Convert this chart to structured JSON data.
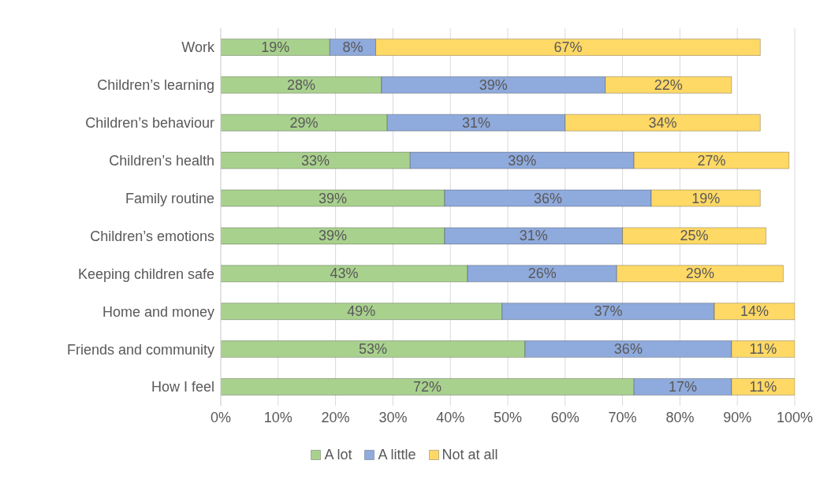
{
  "chart_data": {
    "type": "bar",
    "orientation": "horizontal",
    "stacked": true,
    "categories": [
      "Work",
      "Children’s learning",
      "Children’s behaviour",
      "Children’s health",
      "Family routine",
      "Children’s emotions",
      "Keeping children safe",
      "Home and money",
      "Friends and community",
      "How I feel"
    ],
    "series": [
      {
        "name": "A lot",
        "color": "#a9d18e",
        "values": [
          19,
          28,
          29,
          33,
          39,
          39,
          43,
          49,
          53,
          72
        ],
        "value_labels": [
          "19%",
          "28%",
          "29%",
          "33%",
          "39%",
          "39%",
          "43%",
          "49%",
          "53%",
          "72%"
        ]
      },
      {
        "name": "A little",
        "color": "#8faadc",
        "values": [
          8,
          39,
          31,
          39,
          36,
          31,
          26,
          37,
          36,
          17
        ],
        "value_labels": [
          "8%",
          "39%",
          "31%",
          "39%",
          "36%",
          "31%",
          "26%",
          "37%",
          "36%",
          "17%"
        ]
      },
      {
        "name": "Not at all",
        "color": "#ffd966",
        "values": [
          67,
          22,
          34,
          27,
          19,
          25,
          29,
          14,
          11,
          11
        ],
        "value_labels": [
          "67%",
          "22%",
          "34%",
          "27%",
          "19%",
          "25%",
          "29%",
          "14%",
          "11%",
          "11%"
        ]
      }
    ],
    "xlim": [
      0,
      100
    ],
    "xticks": [
      {
        "value": 0,
        "label": "0%"
      },
      {
        "value": 10,
        "label": "10%"
      },
      {
        "value": 20,
        "label": "20%"
      },
      {
        "value": 30,
        "label": "30%"
      },
      {
        "value": 40,
        "label": "40%"
      },
      {
        "value": 50,
        "label": "50%"
      },
      {
        "value": 60,
        "label": "60%"
      },
      {
        "value": 70,
        "label": "70%"
      },
      {
        "value": 80,
        "label": "80%"
      },
      {
        "value": 90,
        "label": "90%"
      },
      {
        "value": 100,
        "label": "100%"
      }
    ],
    "grid": "x",
    "legend": "bottom"
  }
}
